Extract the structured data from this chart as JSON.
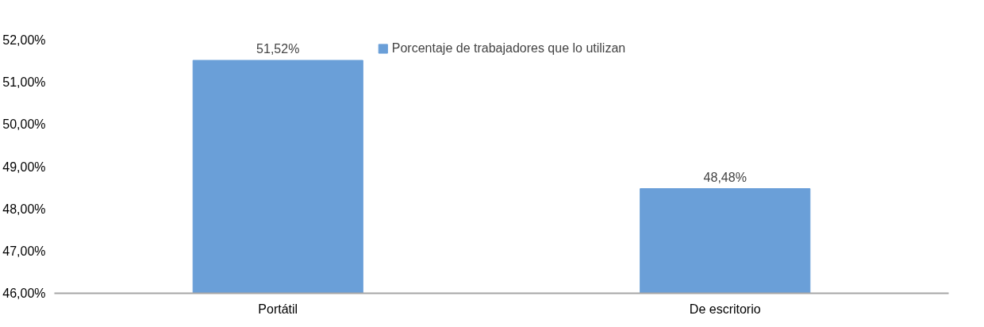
{
  "chart_data": {
    "type": "bar",
    "categories": [
      "Portátil",
      "De escritorio"
    ],
    "series": [
      {
        "name": "Porcentaje de trabajadores que lo utilizan",
        "color": "#6a9fd8",
        "values": [
          51.52,
          48.48
        ],
        "value_labels": [
          "51,52%",
          "48,48%"
        ]
      }
    ],
    "ylim": [
      46,
      52
    ],
    "yticks": [
      {
        "value": 46,
        "label": "46,00%"
      },
      {
        "value": 47,
        "label": "47,00%"
      },
      {
        "value": 48,
        "label": "48,00%"
      },
      {
        "value": 49,
        "label": "49,00%"
      },
      {
        "value": 50,
        "label": "50,00%"
      },
      {
        "value": 51,
        "label": "51,00%"
      },
      {
        "value": 52,
        "label": "52,00%"
      }
    ],
    "grid": false,
    "legend": "top"
  }
}
